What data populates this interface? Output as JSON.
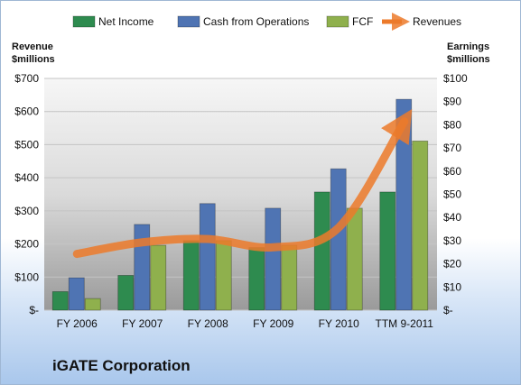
{
  "chart_data": {
    "type": "bar",
    "categories": [
      "FY 2006",
      "FY 2007",
      "FY 2008",
      "FY 2009",
      "FY 2010",
      "TTM 9-2011"
    ],
    "series": [
      {
        "name": "Net Income",
        "axis": "right",
        "values": [
          8,
          15,
          30,
          27,
          51,
          51
        ],
        "color": "#2e8b4f"
      },
      {
        "name": "Cash from Operations",
        "axis": "right",
        "values": [
          14,
          37,
          46,
          44,
          61,
          91
        ],
        "color": "#4f74b3"
      },
      {
        "name": "FCF",
        "axis": "right",
        "values": [
          5,
          28,
          30,
          28,
          44,
          73
        ],
        "color": "#8fb04d"
      },
      {
        "name": "Revenues",
        "axis": "left",
        "type": "line",
        "values": [
          170,
          205,
          215,
          190,
          250,
          570
        ],
        "color": "#ec7a2a"
      }
    ],
    "left_axis": {
      "label_line1": "Revenue",
      "label_line2": "$millions",
      "ylim": [
        0,
        700
      ],
      "ticks": [
        "$-",
        "$100",
        "$200",
        "$300",
        "$400",
        "$500",
        "$600",
        "$700"
      ]
    },
    "right_axis": {
      "label_line1": "Earnings",
      "label_line2": "$millions",
      "ylim": [
        0,
        100
      ],
      "ticks": [
        "$-",
        "$10",
        "$20",
        "$30",
        "$40",
        "$50",
        "$60",
        "$70",
        "$80",
        "$90",
        "$100"
      ]
    },
    "legend_position": "top",
    "grid": true
  },
  "company": "iGATE Corporation"
}
